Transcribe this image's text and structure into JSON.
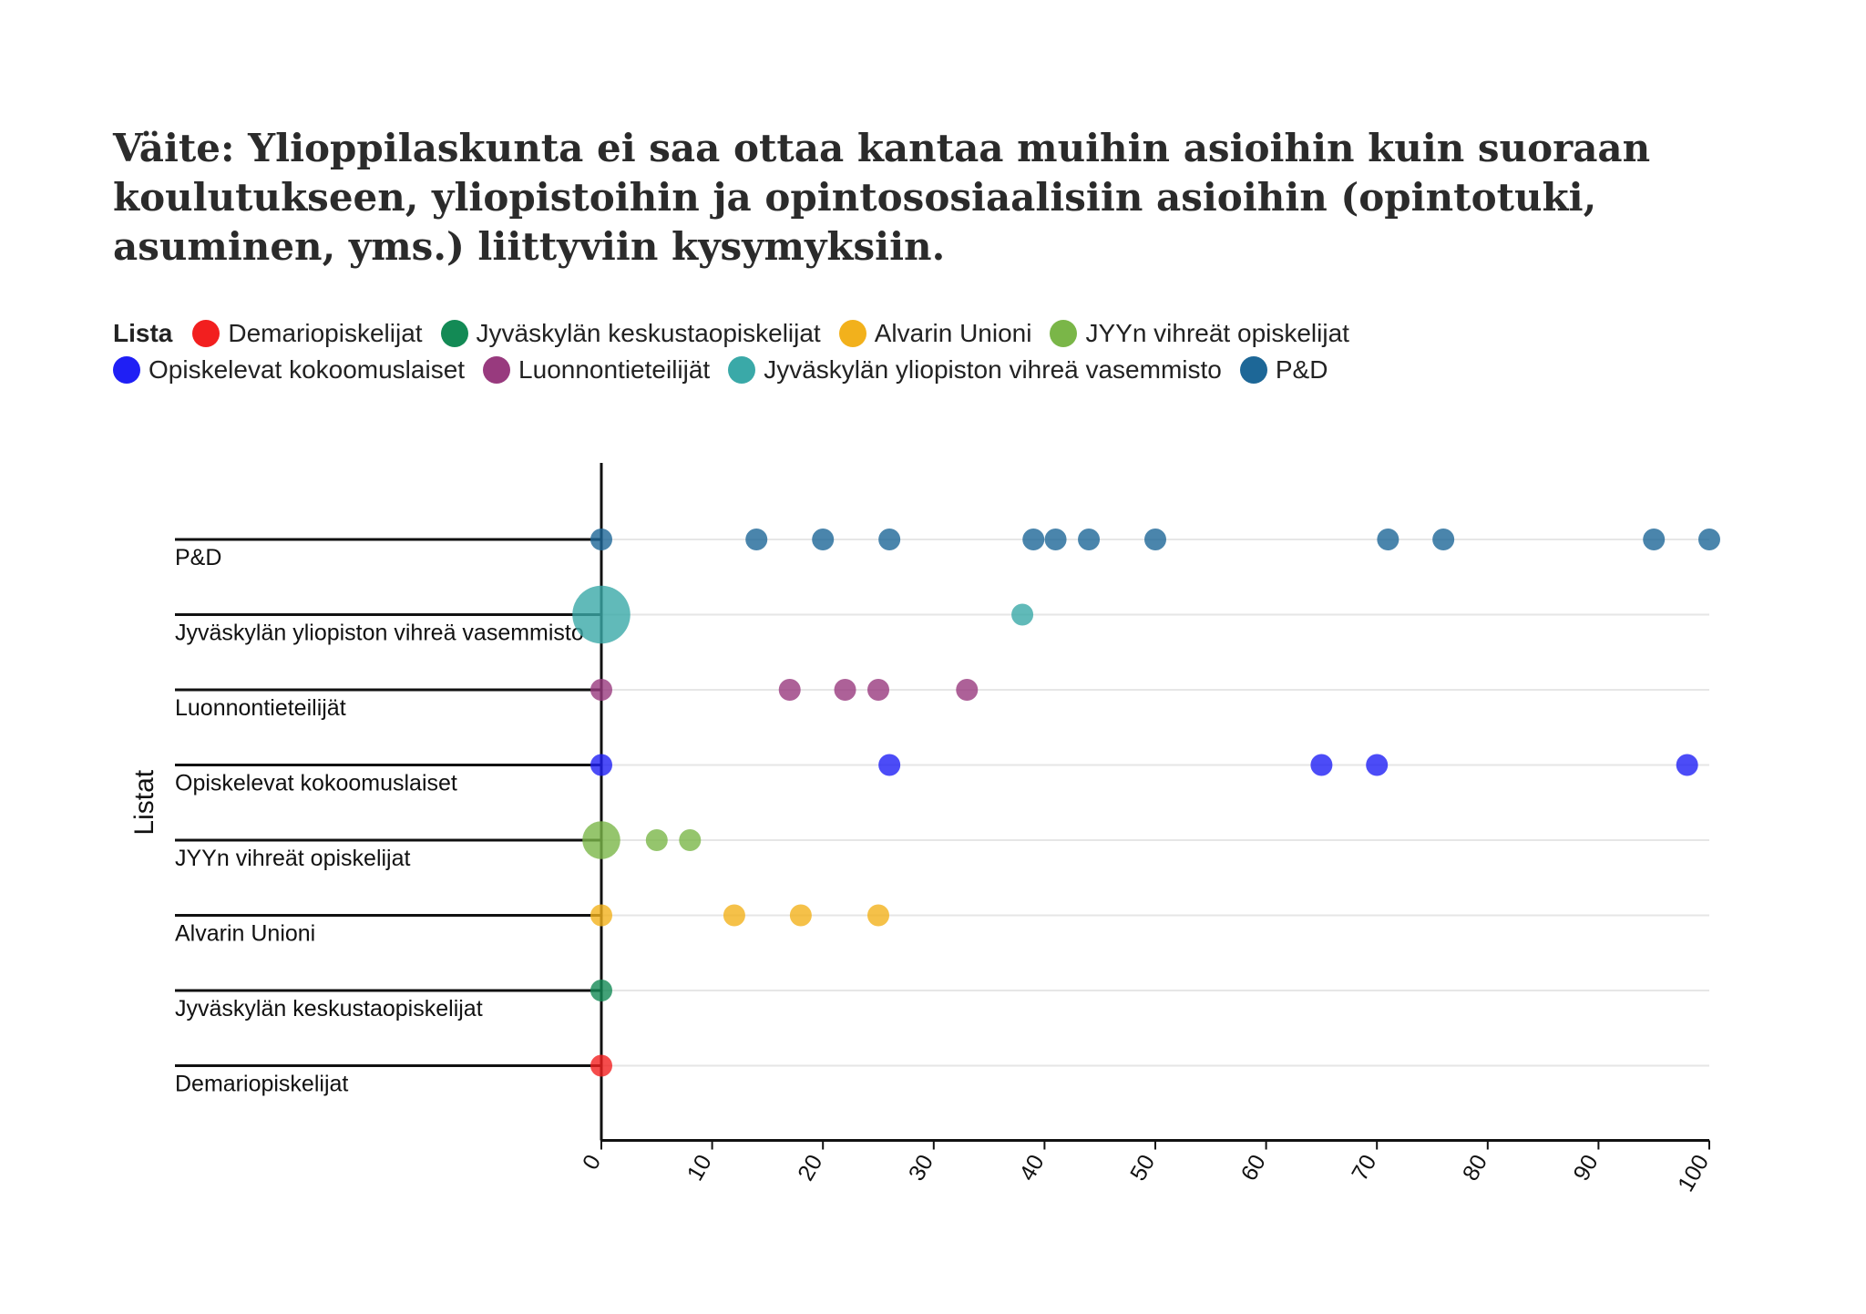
{
  "chart_data": {
    "type": "scatter",
    "title": "Väite: Ylioppilaskunta ei saa ottaa kantaa muihin asioihin kuin suoraan koulutukseen, yliopistoihin ja opintososiaalisiin asioihin (opintotuki, asuminen, yms.) liittyviin kysymyksiin.",
    "legend_title": "Lista",
    "ylabel": "Listat",
    "xlabel": "",
    "xlim": [
      0,
      100
    ],
    "x_ticks": [
      "0",
      "10",
      "20",
      "30",
      "40",
      "50",
      "60",
      "70",
      "80",
      "90",
      "100"
    ],
    "categories": [
      "Demariopiskelijat",
      "Jyväskylän keskustaopiskelijat",
      "Alvarin Unioni",
      "JYYn vihreät opiskelijat",
      "Opiskelevat kokoomuslaiset",
      "Luonnontieteilijät",
      "Jyväskylän yliopiston vihreä vasemmisto",
      "P&D"
    ],
    "legend": [
      {
        "name": "Demariopiskelijat",
        "color": "#f21f1f"
      },
      {
        "name": "Jyväskylän keskustaopiskelijat",
        "color": "#138a55"
      },
      {
        "name": "Alvarin Unioni",
        "color": "#f2b11c"
      },
      {
        "name": "JYYn vihreät opiskelijat",
        "color": "#7ab648"
      },
      {
        "name": "Opiskelevat kokoomuslaiset",
        "color": "#1f1ff5"
      },
      {
        "name": "Luonnontieteilijät",
        "color": "#983a7e"
      },
      {
        "name": "Jyväskylän yliopiston vihreä vasemmisto",
        "color": "#3aa9a8"
      },
      {
        "name": "P&D",
        "color": "#1d6797"
      }
    ],
    "series": [
      {
        "category": "Demariopiskelijat",
        "color": "#f21f1f",
        "points": [
          {
            "x": 0,
            "n": 1
          }
        ]
      },
      {
        "category": "Jyväskylän keskustaopiskelijat",
        "color": "#138a55",
        "points": [
          {
            "x": 0,
            "n": 1
          }
        ]
      },
      {
        "category": "Alvarin Unioni",
        "color": "#f2b11c",
        "points": [
          {
            "x": 0,
            "n": 1
          },
          {
            "x": 12,
            "n": 1
          },
          {
            "x": 18,
            "n": 1
          },
          {
            "x": 25,
            "n": 1
          }
        ]
      },
      {
        "category": "JYYn vihreät opiskelijat",
        "color": "#7ab648",
        "points": [
          {
            "x": 0,
            "n": 3
          },
          {
            "x": 5,
            "n": 1
          },
          {
            "x": 8,
            "n": 1
          }
        ]
      },
      {
        "category": "Opiskelevat kokoomuslaiset",
        "color": "#1f1ff5",
        "points": [
          {
            "x": 0,
            "n": 1
          },
          {
            "x": 26,
            "n": 1
          },
          {
            "x": 65,
            "n": 1
          },
          {
            "x": 70,
            "n": 1
          },
          {
            "x": 98,
            "n": 1
          }
        ]
      },
      {
        "category": "Luonnontieteilijät",
        "color": "#983a7e",
        "points": [
          {
            "x": 0,
            "n": 1
          },
          {
            "x": 17,
            "n": 1
          },
          {
            "x": 22,
            "n": 1
          },
          {
            "x": 25,
            "n": 1
          },
          {
            "x": 33,
            "n": 1
          }
        ]
      },
      {
        "category": "Jyväskylän yliopiston vihreä vasemmisto",
        "color": "#3aa9a8",
        "points": [
          {
            "x": 0,
            "n": 7
          },
          {
            "x": 38,
            "n": 1
          }
        ]
      },
      {
        "category": "P&D",
        "color": "#1d6797",
        "points": [
          {
            "x": 0,
            "n": 1
          },
          {
            "x": 14,
            "n": 1
          },
          {
            "x": 20,
            "n": 1
          },
          {
            "x": 26,
            "n": 1
          },
          {
            "x": 39,
            "n": 1
          },
          {
            "x": 41,
            "n": 1
          },
          {
            "x": 44,
            "n": 1
          },
          {
            "x": 50,
            "n": 1
          },
          {
            "x": 71,
            "n": 1
          },
          {
            "x": 76,
            "n": 1
          },
          {
            "x": 95,
            "n": 1
          },
          {
            "x": 100,
            "n": 1
          }
        ]
      }
    ]
  }
}
